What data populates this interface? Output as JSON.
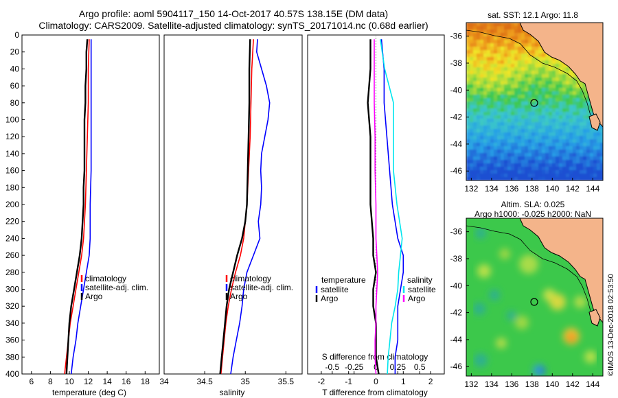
{
  "header": {
    "title_line1": "Argo profile: aoml 5904117_150 14-Oct-2017 40.57S 138.15E (DM data)",
    "title_line2": "Climatology: CARS2009. Satellite-adjusted climatology: synTS_20171014.nc (0.68d earlier)"
  },
  "colors": {
    "climatology": "#ff0000",
    "satellite": "#0000ff",
    "argo": "#000000",
    "s_diff_clim": "#ff00ff",
    "s_diff_sat": "#00e5ee",
    "land": "#f4b48a"
  },
  "chart_data": [
    {
      "type": "line",
      "name": "temperature-profile",
      "xlabel": "temperature (deg C)",
      "ylabel": "",
      "xlim": [
        5,
        19.5
      ],
      "ylim": [
        400,
        0
      ],
      "xticks": [
        6,
        8,
        10,
        12,
        14,
        16,
        18
      ],
      "yticks": [
        0,
        20,
        40,
        60,
        80,
        100,
        120,
        140,
        160,
        180,
        200,
        220,
        240,
        260,
        280,
        300,
        320,
        340,
        360,
        380,
        400
      ],
      "legend": [
        "climatology",
        "satellite-adj. clim.",
        "Argo"
      ],
      "series": [
        {
          "name": "climatology",
          "color": "#ff0000",
          "depth": [
            5,
            40,
            80,
            120,
            160,
            200,
            240,
            260,
            280,
            300,
            320,
            340,
            360,
            380,
            400
          ],
          "values": [
            12.1,
            12.0,
            12.0,
            11.9,
            11.8,
            11.7,
            11.5,
            11.3,
            11.0,
            10.7,
            10.4,
            10.1,
            9.9,
            9.7,
            9.5
          ]
        },
        {
          "name": "satellite-adj. clim.",
          "color": "#0000ff",
          "depth": [
            5,
            40,
            80,
            120,
            160,
            200,
            240,
            260,
            280,
            300,
            320,
            340,
            360,
            380,
            400
          ],
          "values": [
            12.3,
            12.3,
            12.3,
            12.3,
            12.3,
            12.2,
            12.2,
            12.1,
            11.8,
            11.5,
            11.2,
            10.9,
            10.7,
            10.4,
            10.2
          ]
        },
        {
          "name": "Argo",
          "color": "#000000",
          "depth": [
            5,
            20,
            40,
            60,
            80,
            100,
            120,
            140,
            160,
            180,
            200,
            220,
            240,
            260,
            280,
            300,
            320,
            340,
            360,
            380,
            400
          ],
          "values": [
            11.9,
            11.8,
            11.8,
            11.7,
            11.7,
            11.6,
            11.6,
            11.6,
            11.6,
            11.5,
            11.5,
            11.4,
            11.3,
            11.1,
            10.8,
            10.5,
            10.2,
            10.0,
            9.9,
            9.8,
            9.7
          ]
        }
      ]
    },
    {
      "type": "line",
      "name": "salinity-profile",
      "xlabel": "salinity",
      "xlim": [
        34,
        35.7
      ],
      "ylim": [
        400,
        0
      ],
      "xticks": [
        34,
        34.5,
        35,
        35.5
      ],
      "legend": [
        "climatology",
        "satellite-adj. clim.",
        "Argo"
      ],
      "series": [
        {
          "name": "climatology",
          "color": "#ff0000",
          "depth": [
            5,
            40,
            80,
            120,
            160,
            200,
            240,
            260,
            280,
            300,
            320,
            340,
            360,
            380,
            400
          ],
          "values": [
            35.1,
            35.08,
            35.07,
            35.06,
            35.04,
            35.02,
            34.98,
            34.94,
            34.88,
            34.83,
            34.79,
            34.76,
            34.74,
            34.72,
            34.7
          ]
        },
        {
          "name": "satellite-adj. clim.",
          "color": "#0000ff",
          "depth": [
            5,
            20,
            40,
            60,
            80,
            100,
            120,
            140,
            160,
            180,
            200,
            220,
            240,
            260,
            280,
            300,
            320,
            340,
            360,
            380,
            400
          ],
          "values": [
            35.15,
            35.14,
            35.2,
            35.26,
            35.3,
            35.28,
            35.24,
            35.2,
            35.19,
            35.2,
            35.19,
            35.16,
            35.18,
            35.1,
            35.02,
            34.98,
            34.96,
            34.93,
            34.89,
            34.85,
            34.82
          ]
        },
        {
          "name": "Argo",
          "color": "#000000",
          "depth": [
            5,
            40,
            80,
            120,
            160,
            200,
            220,
            240,
            260,
            280,
            300,
            320,
            340,
            360,
            380,
            400
          ],
          "values": [
            35.06,
            35.05,
            35.05,
            35.04,
            35.03,
            35.02,
            35.0,
            34.96,
            34.9,
            34.85,
            34.8,
            34.77,
            34.75,
            34.73,
            34.71,
            34.69
          ]
        }
      ]
    },
    {
      "type": "line",
      "name": "difference-profile",
      "xlabel": "T difference from climatology",
      "xlabel2": "S difference from climatology",
      "xlim": [
        -2.5,
        2.5
      ],
      "ylim": [
        400,
        0
      ],
      "xticks": [
        -2,
        -1,
        0,
        1,
        2
      ],
      "xtick_labels": [
        "-2",
        "-1",
        "0",
        "1",
        "2"
      ],
      "sticks": [
        -0.5,
        -0.25,
        0,
        0.25,
        0.5
      ],
      "stick_labels": [
        "-0.5",
        "-0.25",
        "0",
        "0.25",
        "0.5"
      ],
      "legend_left_title": "temperature",
      "legend_right_title": "salinity",
      "legend": [
        "satellite",
        "Argo"
      ],
      "series": [
        {
          "name": "T satellite",
          "color": "#0000ff",
          "depth": [
            5,
            40,
            80,
            120,
            160,
            200,
            240,
            260,
            280,
            300,
            320,
            340,
            360,
            380,
            400
          ],
          "values": [
            0.2,
            0.3,
            0.3,
            0.4,
            0.5,
            0.6,
            0.8,
            1.0,
            1.0,
            0.9,
            0.8,
            0.8,
            0.8,
            0.7,
            0.7
          ]
        },
        {
          "name": "T Argo",
          "color": "#000000",
          "depth": [
            5,
            40,
            80,
            120,
            160,
            200,
            240,
            260,
            280,
            300,
            320,
            340,
            360,
            380,
            400
          ],
          "values": [
            -0.2,
            -0.2,
            -0.3,
            -0.2,
            -0.2,
            -0.2,
            -0.1,
            -0.1,
            0.0,
            -0.1,
            -0.1,
            0.0,
            0.0,
            0.0,
            0.1
          ]
        },
        {
          "name": "S satellite",
          "color": "#00e5ee",
          "depth": [
            5,
            40,
            80,
            120,
            160,
            200,
            240,
            260,
            280,
            300,
            320,
            340,
            360,
            380,
            400
          ],
          "values": [
            0.05,
            0.1,
            0.2,
            0.2,
            0.2,
            0.24,
            0.3,
            0.28,
            0.26,
            0.25,
            0.22,
            0.18,
            0.16,
            0.14,
            0.13
          ]
        },
        {
          "name": "S Argo",
          "color": "#ff00ff",
          "depth": [
            5,
            40,
            80,
            120,
            160,
            200,
            240,
            260,
            280,
            300,
            320,
            340,
            360,
            380,
            400
          ],
          "values": [
            -0.02,
            -0.02,
            -0.02,
            -0.01,
            -0.01,
            0.0,
            0.0,
            0.01,
            0.02,
            0.01,
            0.0,
            0.0,
            -0.01,
            -0.01,
            0.0
          ]
        }
      ]
    },
    {
      "type": "heatmap",
      "name": "sst-map",
      "title": "sat. SST: 12.1 Argo: 11.8",
      "xlim": [
        131.5,
        145
      ],
      "ylim": [
        -46.7,
        -35
      ],
      "xticks": [
        132,
        134,
        136,
        138,
        140,
        142,
        144
      ],
      "yticks": [
        -36,
        -38,
        -40,
        -42,
        -44,
        -46
      ],
      "marker": {
        "lon": 138.15,
        "lat": -40.57
      }
    },
    {
      "type": "heatmap",
      "name": "sla-map",
      "title_line1": "Altim. SLA: 0.025",
      "title_line2": "Argo h1000: -0.025 h2000: NaN",
      "xlim": [
        131.5,
        145
      ],
      "ylim": [
        -46.7,
        -35
      ],
      "xticks": [
        132,
        134,
        136,
        138,
        140,
        142,
        144
      ],
      "yticks": [
        -36,
        -38,
        -40,
        -42,
        -44,
        -46
      ],
      "marker": {
        "lon": 138.15,
        "lat": -40.57
      }
    }
  ],
  "footer": {
    "watermark": "©IMOS 13-Dec-2018 02:53:50"
  }
}
